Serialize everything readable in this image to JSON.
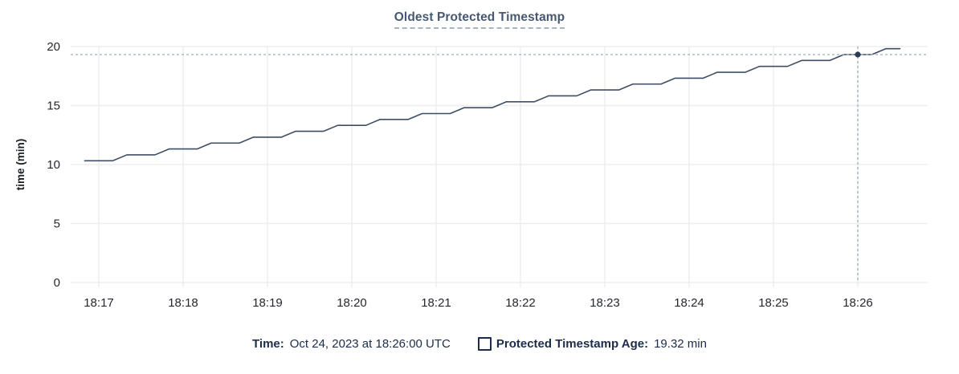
{
  "chart": {
    "title": "Oldest Protected Timestamp"
  },
  "chart_data": {
    "type": "line",
    "title": "Oldest Protected Timestamp",
    "xlabel": "",
    "ylabel": "time (min)",
    "ylim": [
      0,
      20
    ],
    "y_ticks": [
      0,
      5,
      10,
      15,
      20
    ],
    "x_ticks": [
      "18:17",
      "18:18",
      "18:19",
      "18:20",
      "18:21",
      "18:22",
      "18:23",
      "18:24",
      "18:25",
      "18:26"
    ],
    "grid": true,
    "legend_position": "bottom",
    "series": [
      {
        "name": "Protected Timestamp Age",
        "unit": "min",
        "points": [
          [
            "18:16:50",
            10.32
          ],
          [
            "18:17:00",
            10.32
          ],
          [
            "18:17:10",
            10.32
          ],
          [
            "18:17:20",
            10.82
          ],
          [
            "18:17:30",
            10.82
          ],
          [
            "18:17:40",
            10.82
          ],
          [
            "18:17:50",
            11.32
          ],
          [
            "18:18:00",
            11.32
          ],
          [
            "18:18:10",
            11.32
          ],
          [
            "18:18:20",
            11.82
          ],
          [
            "18:18:30",
            11.82
          ],
          [
            "18:18:40",
            11.82
          ],
          [
            "18:18:50",
            12.32
          ],
          [
            "18:19:00",
            12.32
          ],
          [
            "18:19:10",
            12.32
          ],
          [
            "18:19:20",
            12.82
          ],
          [
            "18:19:30",
            12.82
          ],
          [
            "18:19:40",
            12.82
          ],
          [
            "18:19:50",
            13.32
          ],
          [
            "18:20:00",
            13.32
          ],
          [
            "18:20:10",
            13.32
          ],
          [
            "18:20:20",
            13.82
          ],
          [
            "18:20:30",
            13.82
          ],
          [
            "18:20:40",
            13.82
          ],
          [
            "18:20:50",
            14.32
          ],
          [
            "18:21:00",
            14.32
          ],
          [
            "18:21:10",
            14.32
          ],
          [
            "18:21:20",
            14.82
          ],
          [
            "18:21:30",
            14.82
          ],
          [
            "18:21:40",
            14.82
          ],
          [
            "18:21:50",
            15.32
          ],
          [
            "18:22:00",
            15.32
          ],
          [
            "18:22:10",
            15.32
          ],
          [
            "18:22:20",
            15.82
          ],
          [
            "18:22:30",
            15.82
          ],
          [
            "18:22:40",
            15.82
          ],
          [
            "18:22:50",
            16.32
          ],
          [
            "18:23:00",
            16.32
          ],
          [
            "18:23:10",
            16.32
          ],
          [
            "18:23:20",
            16.82
          ],
          [
            "18:23:30",
            16.82
          ],
          [
            "18:23:40",
            16.82
          ],
          [
            "18:23:50",
            17.32
          ],
          [
            "18:24:00",
            17.32
          ],
          [
            "18:24:10",
            17.32
          ],
          [
            "18:24:20",
            17.82
          ],
          [
            "18:24:30",
            17.82
          ],
          [
            "18:24:40",
            17.82
          ],
          [
            "18:24:50",
            18.32
          ],
          [
            "18:25:00",
            18.32
          ],
          [
            "18:25:10",
            18.32
          ],
          [
            "18:25:20",
            18.82
          ],
          [
            "18:25:30",
            18.82
          ],
          [
            "18:25:40",
            18.82
          ],
          [
            "18:25:50",
            19.32
          ],
          [
            "18:26:00",
            19.32
          ],
          [
            "18:26:10",
            19.32
          ],
          [
            "18:26:20",
            19.82
          ],
          [
            "18:26:30",
            19.82
          ]
        ]
      }
    ],
    "crosshair": {
      "time": "18:26:00",
      "value": 19.32
    }
  },
  "legend": {
    "time_label": "Time:",
    "time_value": "Oct 24, 2023 at 18:26:00 UTC",
    "series_label": "Protected Timestamp Age:",
    "series_value": "19.32 min"
  },
  "colors": {
    "line": "#3e4e66",
    "dot": "#2c3c54",
    "crosshair": "#9fb2bc",
    "grid": "#ededed",
    "title": "#475872",
    "legend_text": "#1c2c4a",
    "tick_text": "#25282e"
  }
}
